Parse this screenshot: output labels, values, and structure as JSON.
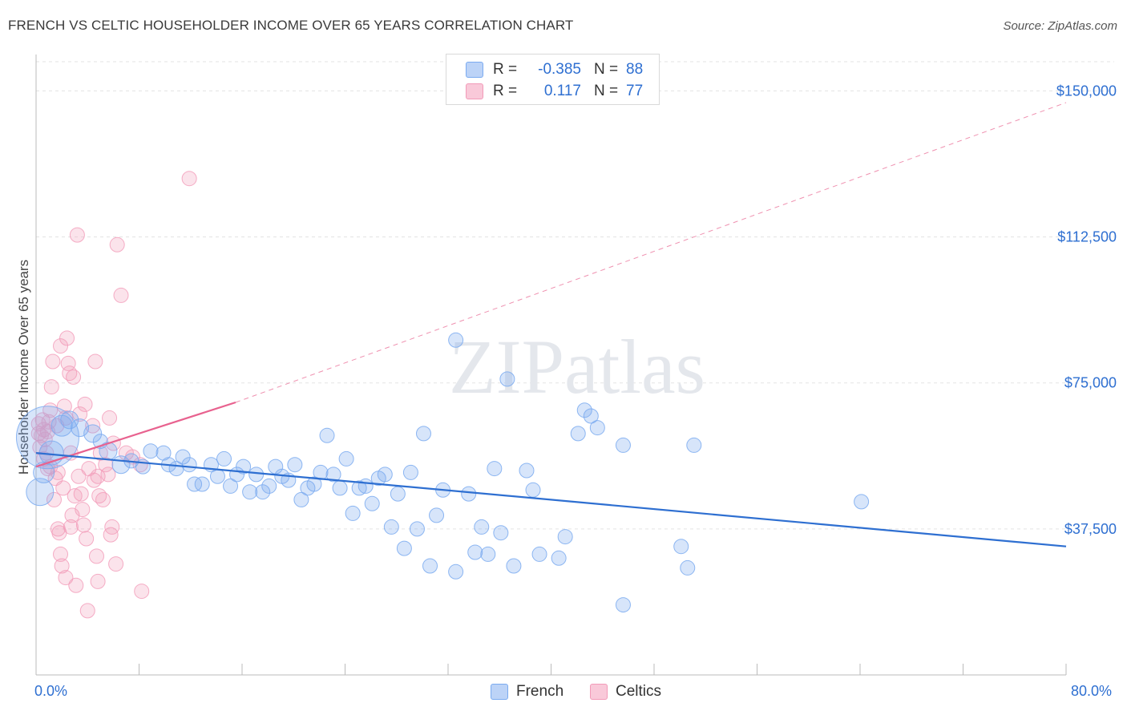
{
  "title": "FRENCH VS CELTIC HOUSEHOLDER INCOME OVER 65 YEARS CORRELATION CHART",
  "source": "Source: ZipAtlas.com",
  "watermark": "ZIPatlas",
  "legend": {
    "rows": [
      {
        "r_label": "R =",
        "r_value": "-0.385",
        "n_label": "N =",
        "n_value": "88"
      },
      {
        "r_label": "R =",
        "r_value": "0.117",
        "n_label": "N =",
        "n_value": "77"
      }
    ]
  },
  "bottom_legend": {
    "french": "French",
    "celtics": "Celtics"
  },
  "axis": {
    "x_min_label": "0.0%",
    "x_max_label": "80.0%"
  },
  "colors": {
    "french": "#7aaaf0",
    "french_line": "#2e6fd1",
    "celtics": "#f29ab8",
    "celtics_line": "#e8628f",
    "tick_label": "#2e6fd1"
  },
  "chart_data": {
    "type": "scatter",
    "title": "FRENCH VS CELTIC HOUSEHOLDER INCOME OVER 65 YEARS CORRELATION CHART",
    "xlabel": "",
    "ylabel": "Householder Income Over 65 years",
    "xlim": [
      0,
      80
    ],
    "ylim": [
      0,
      157500
    ],
    "y_ticks": [
      37500,
      75000,
      112500,
      150000
    ],
    "y_tick_labels": [
      "$37,500",
      "$75,000",
      "$112,500",
      "$150,000"
    ],
    "x_tick_labels": [
      "0.0%",
      "80.0%"
    ],
    "grid": true,
    "legend_placement": "top-center",
    "series": [
      {
        "name": "French",
        "trend": {
          "x": [
            0,
            80
          ],
          "y": [
            57000,
            33000
          ]
        },
        "points": [
          [
            0.3,
            47000,
            18
          ],
          [
            0.6,
            52000,
            14
          ],
          [
            0.9,
            61000,
            40
          ],
          [
            1.2,
            57000,
            16
          ],
          [
            2.0,
            64000,
            14
          ],
          [
            2.6,
            65500,
            12
          ],
          [
            3.4,
            63500,
            12
          ],
          [
            4.4,
            62000,
            12
          ],
          [
            5.0,
            60000,
            10
          ],
          [
            5.6,
            57500,
            12
          ],
          [
            6.6,
            54000,
            12
          ],
          [
            7.4,
            55000,
            10
          ],
          [
            8.3,
            53500,
            10
          ],
          [
            8.9,
            57500,
            10
          ],
          [
            9.9,
            57000,
            10
          ],
          [
            10.3,
            54000,
            10
          ],
          [
            10.9,
            53000,
            10
          ],
          [
            11.4,
            56000,
            10
          ],
          [
            11.9,
            54000,
            10
          ],
          [
            12.3,
            49000,
            10
          ],
          [
            12.9,
            49000,
            10
          ],
          [
            13.6,
            54000,
            10
          ],
          [
            14.1,
            51000,
            10
          ],
          [
            14.6,
            55500,
            10
          ],
          [
            15.1,
            48500,
            10
          ],
          [
            15.6,
            51500,
            10
          ],
          [
            16.1,
            53500,
            10
          ],
          [
            16.6,
            47000,
            10
          ],
          [
            17.1,
            51500,
            10
          ],
          [
            17.6,
            47000,
            10
          ],
          [
            18.1,
            48500,
            10
          ],
          [
            18.6,
            53500,
            10
          ],
          [
            19.1,
            51000,
            10
          ],
          [
            19.6,
            50000,
            10
          ],
          [
            20.1,
            54000,
            10
          ],
          [
            20.6,
            45000,
            10
          ],
          [
            21.1,
            48000,
            10
          ],
          [
            21.6,
            49000,
            10
          ],
          [
            22.1,
            52000,
            10
          ],
          [
            22.6,
            61500,
            10
          ],
          [
            23.1,
            51500,
            10
          ],
          [
            23.6,
            48000,
            10
          ],
          [
            24.1,
            55500,
            10
          ],
          [
            24.6,
            41500,
            10
          ],
          [
            25.1,
            48000,
            10
          ],
          [
            25.6,
            48500,
            10
          ],
          [
            26.1,
            44000,
            10
          ],
          [
            26.6,
            50500,
            10
          ],
          [
            27.1,
            51500,
            10
          ],
          [
            27.6,
            38000,
            10
          ],
          [
            28.1,
            46500,
            10
          ],
          [
            28.6,
            32500,
            10
          ],
          [
            29.1,
            52000,
            10
          ],
          [
            29.6,
            37500,
            10
          ],
          [
            30.1,
            62000,
            10
          ],
          [
            30.6,
            28000,
            10
          ],
          [
            31.1,
            41000,
            10
          ],
          [
            31.6,
            47500,
            10
          ],
          [
            32.6,
            86000,
            10
          ],
          [
            32.6,
            26500,
            10
          ],
          [
            33.6,
            46500,
            10
          ],
          [
            34.1,
            31500,
            10
          ],
          [
            34.6,
            38000,
            10
          ],
          [
            35.1,
            31000,
            10
          ],
          [
            35.6,
            53000,
            10
          ],
          [
            36.1,
            36500,
            10
          ],
          [
            36.6,
            76000,
            10
          ],
          [
            37.1,
            28000,
            10
          ],
          [
            38.1,
            52500,
            10
          ],
          [
            38.6,
            47500,
            10
          ],
          [
            39.1,
            31000,
            10
          ],
          [
            40.6,
            30000,
            10
          ],
          [
            41.1,
            35500,
            10
          ],
          [
            42.1,
            62000,
            10
          ],
          [
            42.6,
            68000,
            10
          ],
          [
            43.1,
            66500,
            10
          ],
          [
            43.6,
            63500,
            10
          ],
          [
            45.6,
            59000,
            10
          ],
          [
            45.6,
            18000,
            10
          ],
          [
            50.1,
            33000,
            10
          ],
          [
            50.6,
            27500,
            10
          ],
          [
            51.1,
            59000,
            10
          ],
          [
            64.1,
            44500,
            10
          ]
        ]
      },
      {
        "name": "Celtics",
        "trend": {
          "x": [
            0,
            15.5
          ],
          "y": [
            53500,
            70000
          ]
        },
        "trend_extension": {
          "x": [
            15.5,
            80
          ],
          "y": [
            70000,
            147000
          ]
        },
        "points": [
          [
            0.2,
            64500,
            10
          ],
          [
            0.2,
            62000,
            10
          ],
          [
            0.3,
            58500,
            10
          ],
          [
            0.4,
            61500,
            10
          ],
          [
            0.5,
            65500,
            10
          ],
          [
            0.6,
            55500,
            10
          ],
          [
            0.6,
            63000,
            10
          ],
          [
            0.7,
            60500,
            10
          ],
          [
            0.8,
            57000,
            10
          ],
          [
            0.9,
            53000,
            10
          ],
          [
            0.9,
            62500,
            10
          ],
          [
            1.0,
            65000,
            10
          ],
          [
            1.1,
            68000,
            10
          ],
          [
            1.1,
            53500,
            10
          ],
          [
            1.2,
            74000,
            10
          ],
          [
            1.3,
            80500,
            10
          ],
          [
            1.4,
            45000,
            10
          ],
          [
            1.5,
            50500,
            10
          ],
          [
            1.6,
            64000,
            10
          ],
          [
            1.7,
            52000,
            10
          ],
          [
            1.7,
            37500,
            10
          ],
          [
            1.8,
            36500,
            10
          ],
          [
            1.9,
            84500,
            10
          ],
          [
            1.9,
            31000,
            10
          ],
          [
            2.0,
            28000,
            10
          ],
          [
            2.1,
            48000,
            10
          ],
          [
            2.2,
            69000,
            10
          ],
          [
            2.3,
            66000,
            10
          ],
          [
            2.3,
            25000,
            10
          ],
          [
            2.4,
            86500,
            10
          ],
          [
            2.5,
            80000,
            10
          ],
          [
            2.6,
            77500,
            10
          ],
          [
            2.7,
            57000,
            10
          ],
          [
            2.7,
            38000,
            10
          ],
          [
            2.8,
            41000,
            10
          ],
          [
            2.9,
            76500,
            10
          ],
          [
            3.0,
            46000,
            10
          ],
          [
            3.1,
            23000,
            10
          ],
          [
            3.2,
            113000,
            10
          ],
          [
            3.3,
            51000,
            10
          ],
          [
            3.4,
            67000,
            10
          ],
          [
            3.5,
            46500,
            10
          ],
          [
            3.6,
            42500,
            10
          ],
          [
            3.7,
            38500,
            10
          ],
          [
            3.8,
            69500,
            10
          ],
          [
            3.9,
            35000,
            10
          ],
          [
            4.0,
            16500,
            10
          ],
          [
            4.1,
            53000,
            10
          ],
          [
            4.4,
            64000,
            10
          ],
          [
            4.5,
            50000,
            10
          ],
          [
            4.6,
            80500,
            10
          ],
          [
            4.7,
            30500,
            10
          ],
          [
            4.8,
            51000,
            10
          ],
          [
            4.8,
            24000,
            10
          ],
          [
            4.9,
            46000,
            10
          ],
          [
            5.0,
            57000,
            10
          ],
          [
            5.2,
            45000,
            10
          ],
          [
            5.4,
            54000,
            10
          ],
          [
            5.6,
            51500,
            10
          ],
          [
            5.7,
            66000,
            10
          ],
          [
            5.8,
            36000,
            10
          ],
          [
            5.9,
            38000,
            10
          ],
          [
            6.0,
            59500,
            10
          ],
          [
            6.2,
            28500,
            10
          ],
          [
            6.3,
            110500,
            10
          ],
          [
            6.6,
            97500,
            10
          ],
          [
            7.0,
            57000,
            10
          ],
          [
            7.5,
            56000,
            10
          ],
          [
            8.1,
            54000,
            10
          ],
          [
            8.2,
            21500,
            10
          ],
          [
            11.9,
            127500,
            10
          ]
        ]
      }
    ]
  }
}
